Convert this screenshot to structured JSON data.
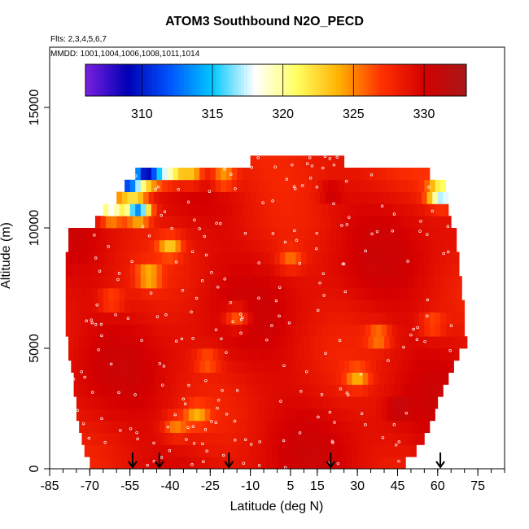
{
  "chart_data": {
    "type": "heatmap",
    "title": "ATOM3 Southbound N2O_PECD",
    "flights_label": "Flts: 2,3,4,5,6,7",
    "mmdd_label": "MMDD: 1001,1004,1006,1008,1011,1014",
    "xlabel": "Latitude (deg N)",
    "ylabel": "Altitude (m)",
    "xlim": [
      -85,
      85
    ],
    "ylim": [
      0,
      17500
    ],
    "x_ticks": [
      -85,
      -70,
      -55,
      -40,
      -25,
      -10,
      5,
      15,
      30,
      45,
      60,
      75
    ],
    "x_minor_step": 5,
    "y_ticks": [
      0,
      5000,
      10000,
      15000
    ],
    "colorbar": {
      "range": [
        306,
        333
      ],
      "ticks": [
        310,
        315,
        320,
        325,
        330
      ],
      "colors": [
        "#7a1fe0",
        "#0000b4",
        "#0055ff",
        "#00c8ff",
        "#ffffff",
        "#ffff60",
        "#ffb000",
        "#ff3000",
        "#d40000",
        "#a81818"
      ]
    },
    "arrows_lat": [
      -54,
      -44,
      -18,
      20,
      61
    ],
    "coverage_rows": [
      {
        "alt": 250,
        "lat_min": -70,
        "lat_max": 48
      },
      {
        "alt": 750,
        "lat_min": -72,
        "lat_max": 52
      },
      {
        "alt": 1250,
        "lat_min": -73,
        "lat_max": 55
      },
      {
        "alt": 1750,
        "lat_min": -74,
        "lat_max": 57
      },
      {
        "alt": 2250,
        "lat_min": -75,
        "lat_max": 59
      },
      {
        "alt": 2750,
        "lat_min": -75,
        "lat_max": 60
      },
      {
        "alt": 3250,
        "lat_min": -76,
        "lat_max": 62
      },
      {
        "alt": 3750,
        "lat_min": -76,
        "lat_max": 64
      },
      {
        "alt": 4250,
        "lat_min": -77,
        "lat_max": 66
      },
      {
        "alt": 4750,
        "lat_min": -78,
        "lat_max": 68
      },
      {
        "alt": 5250,
        "lat_min": -78,
        "lat_max": 71
      },
      {
        "alt": 5750,
        "lat_min": -79,
        "lat_max": 70
      },
      {
        "alt": 6250,
        "lat_min": -79,
        "lat_max": 70
      },
      {
        "alt": 6750,
        "lat_min": -79,
        "lat_max": 70
      },
      {
        "alt": 7250,
        "lat_min": -79,
        "lat_max": 69
      },
      {
        "alt": 7750,
        "lat_min": -79,
        "lat_max": 69
      },
      {
        "alt": 8250,
        "lat_min": -79,
        "lat_max": 68
      },
      {
        "alt": 8750,
        "lat_min": -79,
        "lat_max": 68
      },
      {
        "alt": 9250,
        "lat_min": -78,
        "lat_max": 67
      },
      {
        "alt": 9750,
        "lat_min": -78,
        "lat_max": 67
      },
      {
        "alt": 10250,
        "lat_min": -68,
        "lat_max": 65
      },
      {
        "alt": 10750,
        "lat_min": -65,
        "lat_max": 64
      },
      {
        "alt": 11250,
        "lat_min": -60,
        "lat_max": 64
      },
      {
        "alt": 11750,
        "lat_min": -57,
        "lat_max": 63
      },
      {
        "alt": 12250,
        "lat_min": -53,
        "lat_max": 57
      },
      {
        "alt": 12750,
        "lat_min": -10,
        "lat_max": 25
      }
    ],
    "features": [
      {
        "lat": -38,
        "alt": 1750,
        "value": 325.5
      },
      {
        "lat": -30,
        "alt": 2250,
        "value": 325
      },
      {
        "lat": -26,
        "alt": 4500,
        "value": 326
      },
      {
        "lat": -62,
        "alt": 7000,
        "value": 326
      },
      {
        "lat": -48,
        "alt": 8000,
        "value": 324
      },
      {
        "lat": -40,
        "alt": 9250,
        "value": 324
      },
      {
        "lat": -15,
        "alt": 6300,
        "value": 325
      },
      {
        "lat": 30,
        "alt": 3800,
        "value": 325
      },
      {
        "lat": 38,
        "alt": 5500,
        "value": 325
      },
      {
        "lat": 5,
        "alt": 8700,
        "value": 326
      },
      {
        "lat": 58,
        "alt": 6000,
        "value": 326
      },
      {
        "lat": 20,
        "alt": 11500,
        "value": 331
      },
      {
        "lat": 45,
        "alt": 2500,
        "value": 331
      },
      {
        "lat": -56,
        "alt": 11800,
        "value": 313
      },
      {
        "lat": -50,
        "alt": 12200,
        "value": 316
      },
      {
        "lat": -46,
        "alt": 12350,
        "value": 319
      },
      {
        "lat": -52,
        "alt": 10750,
        "value": 314
      },
      {
        "lat": -62,
        "alt": 10700,
        "value": 318
      },
      {
        "lat": -40,
        "alt": 12300,
        "value": 321
      },
      {
        "lat": -32,
        "alt": 12250,
        "value": 323
      },
      {
        "lat": -20,
        "alt": 12100,
        "value": 324
      },
      {
        "lat": 60,
        "alt": 11400,
        "value": 323
      },
      {
        "lat": 63,
        "alt": 11400,
        "value": 321
      }
    ]
  }
}
